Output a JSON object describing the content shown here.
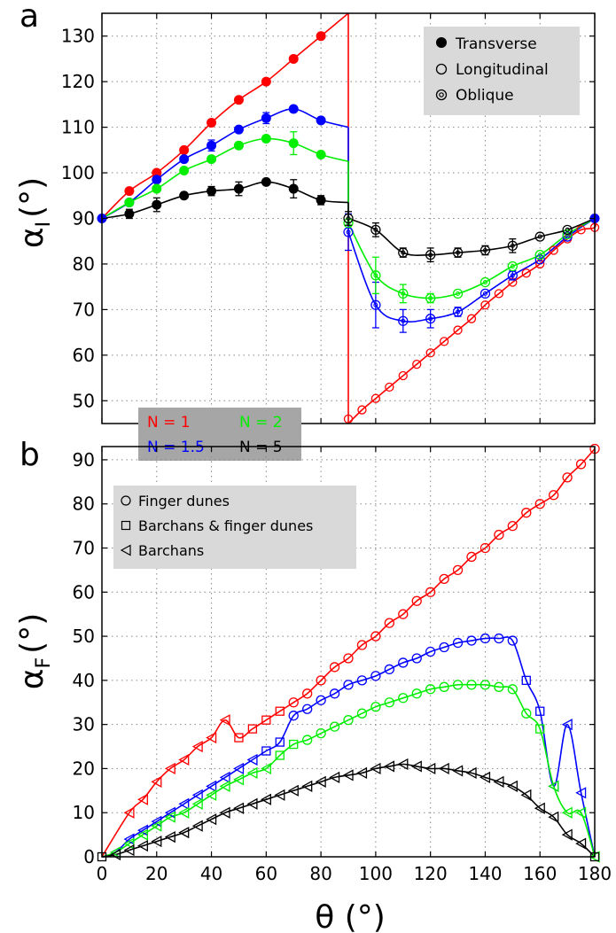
{
  "figure": {
    "panel_a_letter": "a",
    "panel_b_letter": "b",
    "xlabel": "θ (°)",
    "series_legend": [
      {
        "label": "N = 1",
        "color": "#ff0000"
      },
      {
        "label": "N = 2",
        "color": "#00ee00"
      },
      {
        "label": "N = 1.5",
        "color": "#0000ff"
      },
      {
        "label": "N = 5",
        "color": "#000000"
      }
    ]
  },
  "chart_data": [
    {
      "type": "scatter",
      "panel": "a",
      "ylabel": "αI (°)",
      "ylabel_main": "α",
      "ylabel_sub": "I",
      "ylabel_unit": "(°)",
      "xlim": [
        0,
        180
      ],
      "ylim": [
        45,
        135
      ],
      "xticks": [
        0,
        20,
        40,
        60,
        80,
        100,
        120,
        140,
        160,
        180
      ],
      "yticks": [
        50,
        60,
        70,
        80,
        90,
        100,
        110,
        120,
        130
      ],
      "grid": true,
      "legend": {
        "placement": "top-right",
        "entries": [
          {
            "label": "Transverse",
            "marker": "filled-circle"
          },
          {
            "label": "Longitudinal",
            "marker": "open-circle"
          },
          {
            "label": "Oblique",
            "marker": "dotted-circle"
          }
        ]
      },
      "series": [
        {
          "name": "N = 1",
          "color": "#ff0000",
          "transverse": {
            "x": [
              10,
              20,
              30,
              40,
              50,
              60,
              70,
              80
            ],
            "y": [
              96,
              100,
              105,
              111,
              116,
              120,
              125,
              130
            ]
          },
          "longitudinal": {
            "x": [
              90,
              95,
              100,
              105,
              110,
              115,
              120,
              125,
              130,
              135,
              140,
              145,
              150,
              155,
              160,
              165,
              170,
              175,
              180
            ],
            "y": [
              46,
              48,
              50.5,
              53,
              55.5,
              58,
              60.5,
              63,
              65.5,
              68,
              71,
              73.5,
              76,
              78,
              80,
              83,
              85.5,
              87.5,
              88
            ]
          },
          "oblique": {
            "x": [],
            "y": []
          }
        },
        {
          "name": "N = 1.5",
          "color": "#0000ff",
          "transverse": {
            "x": [
              10,
              20,
              30,
              40,
              50,
              60,
              70,
              80
            ],
            "y": [
              93.5,
              98.5,
              103,
              106,
              109.5,
              112,
              114,
              111.5
            ],
            "err": [
              0,
              0,
              0,
              1.2,
              0,
              1.2,
              0,
              0
            ]
          },
          "longitudinal": {
            "x": [],
            "y": []
          },
          "oblique": {
            "x": [
              90,
              100,
              110,
              120,
              130,
              140,
              150,
              160,
              170
            ],
            "y": [
              87,
              71,
              67.5,
              68,
              69.5,
              73.5,
              77.5,
              81,
              86
            ],
            "err": [
              4,
              5,
              2.5,
              2,
              1,
              0,
              1,
              0,
              0
            ]
          }
        },
        {
          "name": "N = 2",
          "color": "#00ee00",
          "transverse": {
            "x": [
              10,
              20,
              30,
              40,
              50,
              60,
              70,
              80
            ],
            "y": [
              93.5,
              96.5,
              100.5,
              103,
              106,
              107.5,
              106.5,
              104
            ],
            "err": [
              0,
              0,
              0,
              0,
              0,
              0,
              2.5,
              0
            ]
          },
          "longitudinal": {
            "x": [],
            "y": []
          },
          "oblique": {
            "x": [
              90,
              100,
              110,
              120,
              130,
              140,
              150,
              160,
              170
            ],
            "y": [
              89,
              77.5,
              73.5,
              72.5,
              73.5,
              76,
              79.5,
              82,
              86.5
            ],
            "err": [
              0,
              4,
              2,
              1,
              0,
              0,
              0,
              0,
              0
            ]
          }
        },
        {
          "name": "N = 5",
          "color": "#000000",
          "transverse": {
            "x": [
              10,
              20,
              30,
              40,
              50,
              60,
              70,
              80
            ],
            "y": [
              91,
              93,
              95,
              96,
              96.5,
              98,
              96.5,
              94
            ],
            "err": [
              1,
              1.5,
              0,
              1,
              1.5,
              0,
              2,
              1
            ]
          },
          "longitudinal": {
            "x": [],
            "y": []
          },
          "oblique": {
            "x": [
              90,
              100,
              110,
              120,
              130,
              140,
              150,
              160,
              170
            ],
            "y": [
              90,
              87.5,
              82.5,
              82,
              82.5,
              83,
              84,
              86,
              87.5
            ],
            "err": [
              1.5,
              1.5,
              1,
              1.5,
              1,
              1,
              1.5,
              0,
              0
            ]
          }
        }
      ],
      "common_points": {
        "x": [
          0,
          180
        ],
        "y": [
          90,
          90
        ]
      }
    },
    {
      "type": "scatter",
      "panel": "b",
      "ylabel": "αF (°)",
      "ylabel_main": "α",
      "ylabel_sub": "F",
      "ylabel_unit": "(°)",
      "xlabel": "θ (°)",
      "xlim": [
        0,
        180
      ],
      "ylim": [
        0,
        93
      ],
      "xticks": [
        0,
        20,
        40,
        60,
        80,
        100,
        120,
        140,
        160,
        180
      ],
      "yticks": [
        0,
        10,
        20,
        30,
        40,
        50,
        60,
        70,
        80,
        90
      ],
      "grid": true,
      "legend": {
        "placement": "top-left",
        "entries": [
          {
            "label": "Finger dunes",
            "marker": "circle"
          },
          {
            "label": "Barchans & finger dunes",
            "marker": "square"
          },
          {
            "label": "Barchans",
            "marker": "triangle-left"
          }
        ]
      },
      "series": [
        {
          "name": "N = 1",
          "color": "#ff0000",
          "barchans": {
            "x": [
              10,
              15,
              20,
              25,
              30,
              35,
              40,
              45
            ],
            "y": [
              10,
              13,
              17,
              20,
              22,
              25,
              27,
              31
            ]
          },
          "mixed": {
            "x": [
              50,
              55,
              60,
              65
            ],
            "y": [
              27,
              29,
              31,
              33
            ]
          },
          "finger": {
            "x": [
              70,
              75,
              80,
              85,
              90,
              95,
              100,
              105,
              110,
              115,
              120,
              125,
              130,
              135,
              140,
              145,
              150,
              155,
              160,
              165,
              170,
              175,
              180
            ],
            "y": [
              35,
              37,
              40,
              43,
              45,
              48,
              50,
              53,
              55,
              58,
              60,
              63,
              65,
              68,
              70,
              73,
              75,
              78,
              80,
              82,
              86,
              89,
              92.5
            ]
          }
        },
        {
          "name": "N = 1.5",
          "color": "#0000ff",
          "barchans": {
            "x": [
              5,
              10,
              15,
              20,
              25,
              30,
              35,
              40,
              45,
              50,
              55,
              165,
              170,
              175
            ],
            "y": [
              1,
              4,
              6,
              8,
              10,
              12,
              14,
              16,
              18,
              20,
              22,
              16,
              30,
              14.5
            ]
          },
          "mixed": {
            "x": [
              60,
              65,
              155,
              160
            ],
            "y": [
              24,
              26,
              40,
              33
            ]
          },
          "finger": {
            "x": [
              70,
              75,
              80,
              85,
              90,
              95,
              100,
              105,
              110,
              115,
              120,
              125,
              130,
              135,
              140,
              145,
              150
            ],
            "y": [
              32,
              33.5,
              35.5,
              37,
              39,
              40,
              41,
              42.5,
              44,
              45,
              46.5,
              47.5,
              48.5,
              49,
              49.5,
              49.5,
              49
            ]
          }
        },
        {
          "name": "N = 2",
          "color": "#00ee00",
          "barchans": {
            "x": [
              5,
              10,
              15,
              20,
              25,
              30,
              35,
              40,
              45,
              50,
              55,
              60,
              165,
              170,
              175,
              180
            ],
            "y": [
              1,
              3,
              5,
              7,
              9,
              10,
              12,
              14,
              16,
              17.5,
              19,
              20,
              16,
              10,
              10,
              0
            ]
          },
          "mixed": {
            "x": [
              65,
              70,
              160
            ],
            "y": [
              23,
              25.5,
              29
            ]
          },
          "finger": {
            "x": [
              75,
              80,
              85,
              90,
              95,
              100,
              105,
              110,
              115,
              120,
              125,
              130,
              135,
              140,
              145,
              150,
              155
            ],
            "y": [
              26.5,
              28,
              29.5,
              31,
              32.5,
              34,
              35,
              36,
              37,
              38,
              38.5,
              39,
              39,
              39,
              38.5,
              38,
              32.5
            ]
          }
        },
        {
          "name": "N = 5",
          "color": "#000000",
          "barchans": {
            "x": [
              5,
              10,
              15,
              20,
              25,
              30,
              35,
              40,
              45,
              50,
              55,
              60,
              65,
              70,
              75,
              80,
              85,
              90,
              95,
              100,
              105,
              110,
              115,
              120,
              125,
              130,
              135,
              140,
              145,
              150,
              155,
              160,
              165,
              170,
              175
            ],
            "y": [
              0.5,
              1.5,
              2.5,
              3.5,
              4.5,
              5.5,
              7,
              8.5,
              10,
              11,
              12,
              13,
              14,
              15,
              16,
              17,
              18,
              18.5,
              19,
              20,
              20.5,
              21,
              20.5,
              20,
              20,
              19.5,
              19,
              18,
              17,
              16,
              14,
              11,
              9,
              5,
              3
            ]
          },
          "mixed": {
            "x": [],
            "y": []
          },
          "finger": {
            "x": [],
            "y": []
          }
        }
      ],
      "common_points": {
        "x": [
          0,
          180
        ],
        "y": [
          0,
          0
        ]
      }
    }
  ]
}
